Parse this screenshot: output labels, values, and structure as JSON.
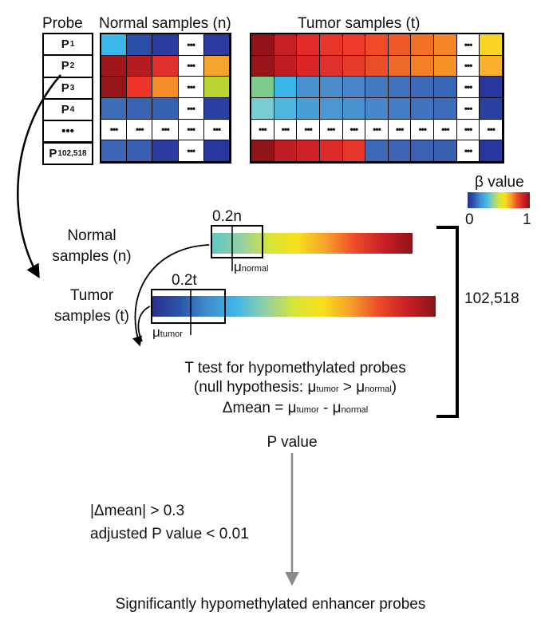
{
  "headers": {
    "probe": "Probe",
    "normal": "Normal samples (n)",
    "tumor": "Tumor samples (t)"
  },
  "probes": [
    {
      "base": "P",
      "sub": "1"
    },
    {
      "base": "P",
      "sub": "2"
    },
    {
      "base": "P",
      "sub": "3"
    },
    {
      "base": "P",
      "sub": "4"
    },
    {
      "base": "•••",
      "sub": ""
    },
    {
      "base": "P",
      "sub": "102,518"
    }
  ],
  "ellipsis": "•••",
  "normal_grid": [
    [
      "#3bb8ea",
      "#2b4ea6",
      "#2a3c9e",
      "...",
      "#2b3a9c"
    ],
    [
      "#a0171b",
      "#b31d22",
      "#e0302b",
      "...",
      "#f5a52c"
    ],
    [
      "#961518",
      "#ee3328",
      "#f48d27",
      "...",
      "#b8d433"
    ],
    [
      "#3f6cb6",
      "#3a64b2",
      "#3563b1",
      "...",
      "#2b3fa0"
    ],
    [
      "...",
      "...",
      "...",
      "...",
      "..."
    ],
    [
      "#3c66b4",
      "#3960b0",
      "#2a3d9f",
      "...",
      "#28379b"
    ]
  ],
  "tumor_grid": [
    [
      "#921418",
      "#c71f26",
      "#e52a2a",
      "#e83429",
      "#ee3a2b",
      "#f04a2a",
      "#f05a2a",
      "#f37029",
      "#f48528",
      "...",
      "#fad323"
    ],
    [
      "#9a1519",
      "#c21d24",
      "#d92428",
      "#e0302b",
      "#e63a2c",
      "#ec4e2b",
      "#f06a2a",
      "#f37f29",
      "#f59228",
      "...",
      "#f7b12a"
    ],
    [
      "#7ccc8e",
      "#3ab5e8",
      "#4a91cf",
      "#4a8bcc",
      "#4884c8",
      "#447ac2",
      "#3f71bd",
      "#3b6ab8",
      "#3866b6",
      "...",
      "#28379b"
    ],
    [
      "#79cdd0",
      "#4fb7df",
      "#4a9ed6",
      "#4c97d2",
      "#4a92cf",
      "#4887c9",
      "#437dc3",
      "#3f73bd",
      "#3d6db9",
      "...",
      "#2b3fa0"
    ],
    [
      "...",
      "...",
      "...",
      "...",
      "...",
      "...",
      "...",
      "...",
      "...",
      "...",
      "..."
    ],
    [
      "#8e1417",
      "#bf1e25",
      "#cf2127",
      "#dd2a2a",
      "#e73529",
      "#3d69b7",
      "#3c66b4",
      "#3b62b2",
      "#395fb0",
      "...",
      "#28379b"
    ]
  ],
  "legend": {
    "title": "β value",
    "min": "0",
    "max": "1"
  },
  "dist": {
    "normal_label_1": "Normal",
    "normal_label_2": "samples (n)",
    "tumor_label_1": "Tumor",
    "tumor_label_2": "samples (t)",
    "frac_normal": "0.2n",
    "frac_tumor": "0.2t",
    "mu": "μ",
    "sub_normal": "normal",
    "sub_tumor": "tumor",
    "probe_count": "102,518"
  },
  "test": {
    "line1": "T test for hypomethylated probes",
    "line2_pre": "(null hypothesis: ",
    "line2_mid": " > ",
    "line2_post": ")",
    "line3_pre": "Δmean = ",
    "line3_mid": " - ",
    "pvalue": "P value"
  },
  "criteria": {
    "line1": "|Δmean| > 0.3",
    "line2": "adjusted P value < 0.01"
  },
  "result": "Significantly hypomethylated enhancer probes",
  "colors": {
    "jet": [
      "#2a2f8f",
      "#2b55a8",
      "#3f8fd0",
      "#43b6e6",
      "#8fd0a8",
      "#d6e43a",
      "#f7e01c",
      "#f6a02a",
      "#ee4a29",
      "#c81f25",
      "#8c1418"
    ],
    "arrow_gray": "#8a8a8a"
  }
}
